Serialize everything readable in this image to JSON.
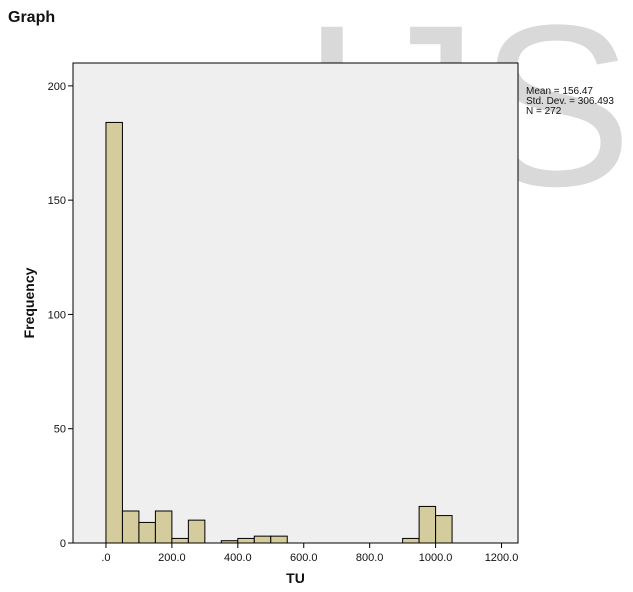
{
  "page": {
    "title": "Graph",
    "watermark_text": "IJS",
    "watermark_color": "#d9d9d9"
  },
  "stats": {
    "mean": "Mean = 156.47",
    "std": "Std. Dev. = 306.493",
    "n": "N = 272"
  },
  "colors": {
    "plot_bg": "#efefef",
    "bar_fill": "#d4cc9c",
    "bar_stroke": "#000000"
  },
  "chart_data": {
    "type": "bar",
    "title": "",
    "xlabel": "TU",
    "ylabel": "Frequency",
    "xlim": [
      -100,
      1250
    ],
    "ylim": [
      0,
      210
    ],
    "x_ticks": [
      0,
      200,
      400,
      600,
      800,
      1000,
      1200
    ],
    "x_tick_labels": [
      ".0",
      "200.0",
      "400.0",
      "600.0",
      "800.0",
      "1000.0",
      "1200.0"
    ],
    "y_ticks": [
      0,
      50,
      100,
      150,
      200
    ],
    "y_tick_labels": [
      "0",
      "50",
      "100",
      "150",
      "200"
    ],
    "grid": false,
    "bin_width": 50,
    "bins": [
      {
        "start": 0,
        "count": 184
      },
      {
        "start": 50,
        "count": 14
      },
      {
        "start": 100,
        "count": 9
      },
      {
        "start": 150,
        "count": 14
      },
      {
        "start": 200,
        "count": 2
      },
      {
        "start": 250,
        "count": 10
      },
      {
        "start": 350,
        "count": 1
      },
      {
        "start": 400,
        "count": 2
      },
      {
        "start": 450,
        "count": 3
      },
      {
        "start": 500,
        "count": 3
      },
      {
        "start": 900,
        "count": 2
      },
      {
        "start": 950,
        "count": 16
      },
      {
        "start": 1000,
        "count": 12
      }
    ]
  }
}
